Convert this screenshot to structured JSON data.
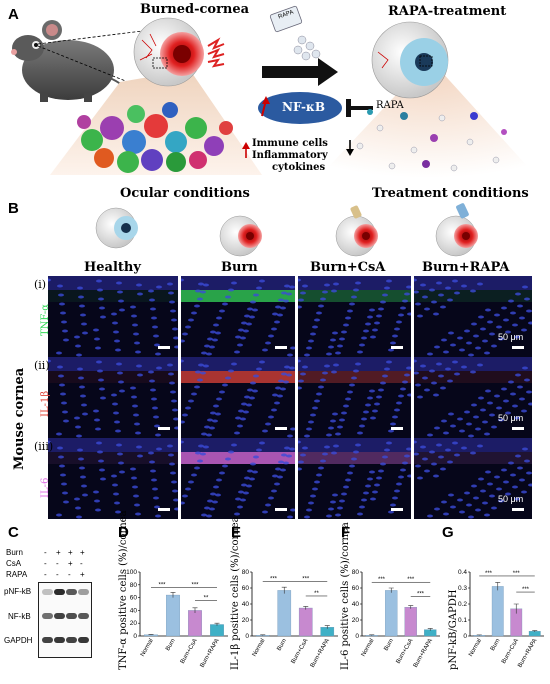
{
  "panel_a": {
    "label": "A",
    "burned_title": "Burned-cornea",
    "treatment_title": "RAPA-treatment",
    "bottle_label": "RAPA",
    "nfkb_label": "NF-κB",
    "inhibitor_label": "RAPA",
    "immune_line": "Immune cells",
    "inflammatory_line": "Inflammatory",
    "cytokines_line": "cytokines"
  },
  "panel_b": {
    "label": "B",
    "ocular_title": "Ocular conditions",
    "treatment_title": "Treatment conditions",
    "columns": [
      "Healthy",
      "Burn",
      "Burn+CsA",
      "Burn+RAPA"
    ],
    "rows": [
      {
        "roman": "(i)",
        "marker": "TNF-α",
        "color": "#35d85a"
      },
      {
        "roman": "(ii)",
        "marker": "IL-1β",
        "color": "#e0443a"
      },
      {
        "roman": "(iii)",
        "marker": "IL-6",
        "color": "#e070e6"
      }
    ],
    "side_label": "Mouse cornea",
    "scale_text": "50 μm"
  },
  "panel_c": {
    "label": "C",
    "conditions": [
      {
        "name": "Burn",
        "marks": [
          "-",
          "+",
          "+",
          "+"
        ]
      },
      {
        "name": "CsA",
        "marks": [
          "-",
          "-",
          "+",
          "-"
        ]
      },
      {
        "name": "RAPA",
        "marks": [
          "-",
          "-",
          "-",
          "+"
        ]
      }
    ],
    "bands": [
      "pNF-kB",
      "NF-kB",
      "GAPDH"
    ]
  },
  "chart_data": [
    {
      "panel": "D",
      "type": "bar",
      "categories": [
        "Normal",
        "Burn",
        "Burn+CsA",
        "Burn+RAPA"
      ],
      "values": [
        2,
        64,
        40,
        18
      ],
      "errors": [
        0.5,
        4,
        4,
        2
      ],
      "ylabel": "TNF-α positive cells (%)/cornea",
      "ylim": [
        0,
        100
      ],
      "yticks": [
        0,
        20,
        40,
        60,
        80,
        100
      ],
      "significance": [
        "***",
        "***",
        "**"
      ],
      "colors": [
        "#9bc0e0",
        "#9bc0e0",
        "#c789cf",
        "#3fb0c6"
      ]
    },
    {
      "panel": "E",
      "type": "bar",
      "categories": [
        "Normal",
        "Burn",
        "Burn+CsA",
        "Burn+RAPA"
      ],
      "values": [
        1,
        57,
        35,
        11
      ],
      "errors": [
        0.5,
        4,
        2,
        2
      ],
      "ylabel": "IL-1β positive cells (%)/cornea",
      "ylim": [
        0,
        80
      ],
      "yticks": [
        0,
        20,
        40,
        60,
        80
      ],
      "significance": [
        "***",
        "***",
        "**"
      ],
      "colors": [
        "#9bc0e0",
        "#9bc0e0",
        "#c789cf",
        "#3fb0c6"
      ]
    },
    {
      "panel": "F",
      "type": "bar",
      "categories": [
        "Normal",
        "Burn",
        "Burn+CsA",
        "Burn+RAPA"
      ],
      "values": [
        1,
        57,
        36,
        8
      ],
      "errors": [
        0.5,
        3,
        2,
        1.5
      ],
      "ylabel": "IL-6 positive cells (%)/cornea",
      "ylim": [
        0,
        80
      ],
      "yticks": [
        0,
        20,
        40,
        60,
        80
      ],
      "significance": [
        "***",
        "***",
        "***"
      ],
      "colors": [
        "#9bc0e0",
        "#9bc0e0",
        "#c789cf",
        "#3fb0c6"
      ]
    },
    {
      "panel": "G",
      "type": "bar",
      "categories": [
        "Normal",
        "Burn",
        "Burn+CsA",
        "Burn+RAPA"
      ],
      "values": [
        0.005,
        0.31,
        0.17,
        0.03
      ],
      "errors": [
        0.002,
        0.025,
        0.03,
        0.004
      ],
      "ylabel": "pNF-kB/GAPDH",
      "ylim": [
        0,
        0.4
      ],
      "yticks": [
        0,
        0.1,
        0.2,
        0.3,
        0.4
      ],
      "significance": [
        "***",
        "***",
        "***"
      ],
      "colors": [
        "#9bc0e0",
        "#9bc0e0",
        "#c789cf",
        "#3fb0c6"
      ]
    }
  ]
}
